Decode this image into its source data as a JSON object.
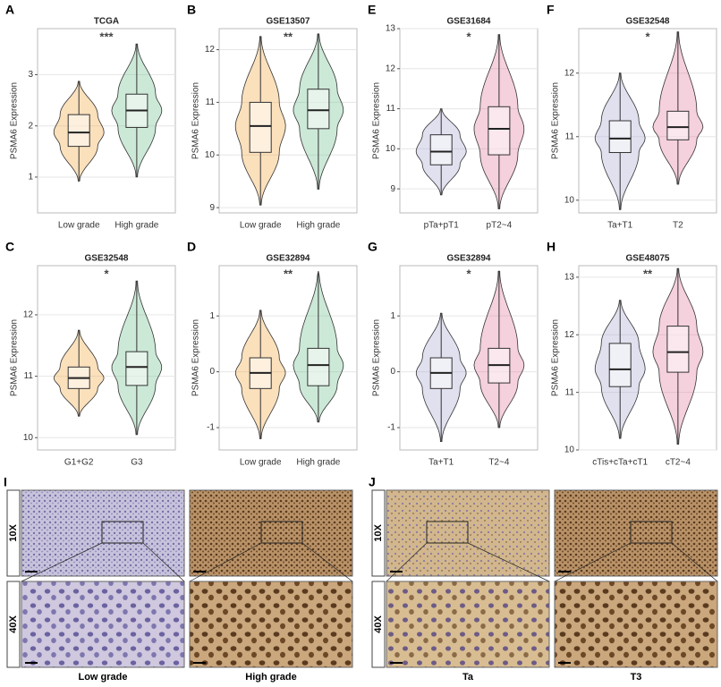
{
  "chart_data": [
    {
      "type": "box",
      "letter": "A",
      "title": "TCGA",
      "ylabel": "PSMA6 Expression",
      "significance": "***",
      "categories": [
        "Low grade",
        "High grade"
      ],
      "colors": [
        "#f4a640",
        "#6cc08b"
      ],
      "boxes": [
        {
          "min": 0.92,
          "q1": 1.6,
          "median": 1.87,
          "q3": 2.22,
          "max": 2.87
        },
        {
          "min": 1.0,
          "q1": 1.97,
          "median": 2.3,
          "q3": 2.62,
          "max": 3.6
        }
      ],
      "ylim": [
        0.3,
        3.9
      ],
      "yticks": [
        1,
        2,
        3
      ],
      "grid": true
    },
    {
      "type": "box",
      "letter": "B",
      "title": "GSE13507",
      "ylabel": "PSMA6 Expression",
      "significance": "**",
      "categories": [
        "Low grade",
        "High grade"
      ],
      "colors": [
        "#f4a640",
        "#6cc08b"
      ],
      "boxes": [
        {
          "min": 9.05,
          "q1": 10.05,
          "median": 10.55,
          "q3": 11.0,
          "max": 12.25
        },
        {
          "min": 9.35,
          "q1": 10.5,
          "median": 10.85,
          "q3": 11.25,
          "max": 12.3
        }
      ],
      "ylim": [
        8.9,
        12.4
      ],
      "yticks": [
        9,
        10,
        11,
        12
      ],
      "grid": true
    },
    {
      "type": "box",
      "letter": "E",
      "title": "GSE31684",
      "ylabel": "PSMA6 Expression",
      "significance": "*",
      "categories": [
        "pTa+pT1",
        "pT2~4"
      ],
      "colors": [
        "#a6a6d2",
        "#e3779f"
      ],
      "boxes": [
        {
          "min": 8.85,
          "q1": 9.6,
          "median": 9.93,
          "q3": 10.35,
          "max": 11.0
        },
        {
          "min": 8.5,
          "q1": 9.85,
          "median": 10.5,
          "q3": 11.05,
          "max": 12.85
        }
      ],
      "ylim": [
        8.4,
        13
      ],
      "yticks": [
        9,
        10,
        11,
        12,
        13
      ],
      "grid": true
    },
    {
      "type": "box",
      "letter": "F",
      "title": "GSE32548",
      "ylabel": "PSMA6 Expression",
      "significance": "*",
      "categories": [
        "Ta+T1",
        "T2"
      ],
      "colors": [
        "#a6a6d2",
        "#e3779f"
      ],
      "boxes": [
        {
          "min": 9.85,
          "q1": 10.75,
          "median": 10.97,
          "q3": 11.25,
          "max": 12.0
        },
        {
          "min": 10.25,
          "q1": 10.95,
          "median": 11.15,
          "q3": 11.4,
          "max": 12.65
        }
      ],
      "ylim": [
        9.8,
        12.7
      ],
      "yticks": [
        10,
        11,
        12
      ],
      "grid": true
    },
    {
      "type": "box",
      "letter": "C",
      "title": "GSE32548",
      "ylabel": "PSMA6 Expression",
      "significance": "*",
      "categories": [
        "G1+G2",
        "G3"
      ],
      "colors": [
        "#f4a640",
        "#6cc08b"
      ],
      "boxes": [
        {
          "min": 10.35,
          "q1": 10.8,
          "median": 10.97,
          "q3": 11.15,
          "max": 11.75
        },
        {
          "min": 10.05,
          "q1": 10.85,
          "median": 11.15,
          "q3": 11.4,
          "max": 12.55
        }
      ],
      "ylim": [
        9.8,
        12.8
      ],
      "yticks": [
        10,
        11,
        12
      ],
      "grid": true
    },
    {
      "type": "box",
      "letter": "D",
      "title": "GSE32894",
      "ylabel": "PSMA6 Expression",
      "significance": "**",
      "categories": [
        "Low grade",
        "High grade"
      ],
      "colors": [
        "#f4a640",
        "#6cc08b"
      ],
      "boxes": [
        {
          "min": -1.2,
          "q1": -0.3,
          "median": -0.02,
          "q3": 0.25,
          "max": 1.1
        },
        {
          "min": -0.9,
          "q1": -0.25,
          "median": 0.12,
          "q3": 0.42,
          "max": 1.8
        }
      ],
      "ylim": [
        -1.4,
        1.9
      ],
      "yticks": [
        -1,
        0,
        1
      ],
      "grid": true
    },
    {
      "type": "box",
      "letter": "G",
      "title": "GSE32894",
      "ylabel": "PSMA6 Expression",
      "significance": "*",
      "categories": [
        "Ta+T1",
        "T2~4"
      ],
      "colors": [
        "#a6a6d2",
        "#e3779f"
      ],
      "boxes": [
        {
          "min": -1.25,
          "q1": -0.3,
          "median": -0.02,
          "q3": 0.25,
          "max": 1.05
        },
        {
          "min": -1.0,
          "q1": -0.2,
          "median": 0.12,
          "q3": 0.42,
          "max": 1.8
        }
      ],
      "ylim": [
        -1.4,
        1.9
      ],
      "yticks": [
        -1,
        0,
        1
      ],
      "grid": true
    },
    {
      "type": "box",
      "letter": "H",
      "title": "GSE48075",
      "ylabel": "PSMA6 Expression",
      "significance": "**",
      "categories": [
        "cTis+cTa+cT1",
        "cT2~4"
      ],
      "colors": [
        "#a6a6d2",
        "#e3779f"
      ],
      "boxes": [
        {
          "min": 10.2,
          "q1": 11.1,
          "median": 11.4,
          "q3": 11.85,
          "max": 12.6
        },
        {
          "min": 10.1,
          "q1": 11.35,
          "median": 11.7,
          "q3": 12.15,
          "max": 13.15
        }
      ],
      "ylim": [
        10,
        13.2
      ],
      "yticks": [
        10,
        11,
        12,
        13
      ],
      "grid": true
    }
  ],
  "images": [
    {
      "letter": "I",
      "rows": [
        "10X",
        "40X"
      ],
      "columns": [
        "Low grade",
        "High grade"
      ]
    },
    {
      "letter": "J",
      "rows": [
        "10X",
        "40X"
      ],
      "columns": [
        "Ta",
        "T3"
      ]
    }
  ]
}
